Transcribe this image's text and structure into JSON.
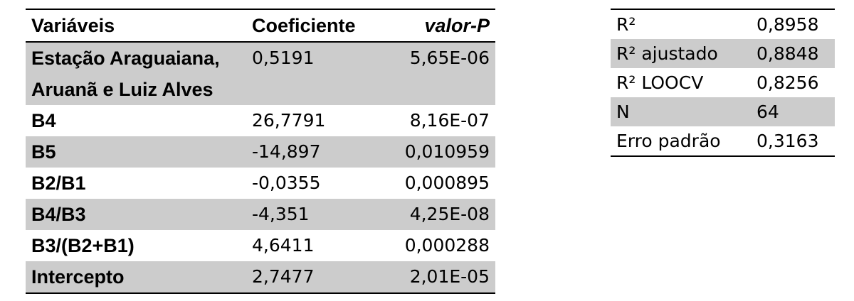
{
  "coef_table": {
    "headers": {
      "variable": "Variáveis",
      "coefficient": "Coeficiente",
      "p_value": "valor-P"
    },
    "rows": [
      {
        "variable": "Estação Araguaiana, Aruanã e Luiz Alves",
        "coefficient": "0,5191",
        "p_value": "5,65E-06"
      },
      {
        "variable": "B4",
        "coefficient": "26,7791",
        "p_value": "8,16E-07"
      },
      {
        "variable": "B5",
        "coefficient": "-14,897",
        "p_value": "0,010959"
      },
      {
        "variable": "B2/B1",
        "coefficient": "-0,0355",
        "p_value": "0,000895"
      },
      {
        "variable": "B4/B3",
        "coefficient": "-4,351",
        "p_value": "4,25E-08"
      },
      {
        "variable": "B3/(B2+B1)",
        "coefficient": "4,6411",
        "p_value": "0,000288"
      },
      {
        "variable": "Intercepto",
        "coefficient": "2,7477",
        "p_value": "2,01E-05"
      }
    ]
  },
  "stats_table": {
    "rows": [
      {
        "label": "R²",
        "value": "0,8958"
      },
      {
        "label": "R² ajustado",
        "value": "0,8848"
      },
      {
        "label": "R² LOOCV",
        "value": "0,8256"
      },
      {
        "label": "N",
        "value": "64"
      },
      {
        "label": "Erro padrão",
        "value": "0,3163"
      }
    ]
  },
  "colors": {
    "row_shading": "#cccccc",
    "rule": "#000000"
  }
}
